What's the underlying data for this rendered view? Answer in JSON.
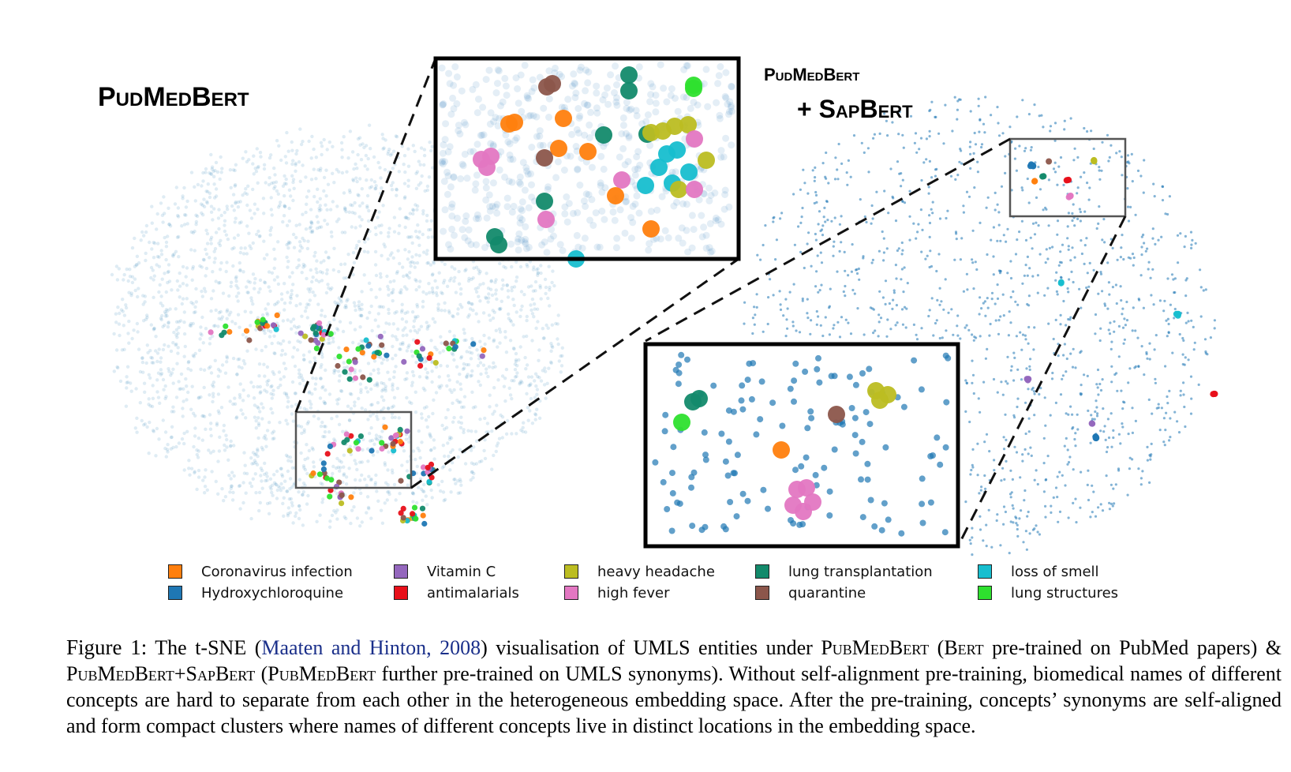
{
  "panels": {
    "left_title": "PudMedBert",
    "right_title_line1": "PudMedBert",
    "right_title_line2": "+ SapBert"
  },
  "legend": [
    {
      "label": "Coronavirus infection",
      "color": "#ff7f0e"
    },
    {
      "label": "Hydroxychloroquine",
      "color": "#1f77b4"
    },
    {
      "label": "Vitamin C",
      "color": "#9467bd"
    },
    {
      "label": "antimalarials",
      "color": "#e8101a"
    },
    {
      "label": "heavy headache",
      "color": "#bcbd22"
    },
    {
      "label": "high fever",
      "color": "#e377c2"
    },
    {
      "label": "lung transplantation",
      "color": "#138a6b"
    },
    {
      "label": "quarantine",
      "color": "#8c564b"
    },
    {
      "label": "loss of smell",
      "color": "#17becf"
    },
    {
      "label": "lung structures",
      "color": "#2ee02e"
    }
  ],
  "background_color": "#1f77b4",
  "caption": {
    "label": "Figure 1:",
    "t1": "The t-SNE (",
    "cite": "Maaten and Hinton, 2008",
    "t2": ") visualisation of UMLS entities under ",
    "m1": "PubMedBert",
    "t3": " (",
    "m2": "Bert",
    "t4": " pre-trained on PubMed papers) & ",
    "m3": "PubMedBert+SapBert",
    "t5": " (",
    "m4": "PubMedBert",
    "t6": " further pre-trained on UMLS synonyms). Without self-alignment pre-training, biomedical names of different concepts are hard to separate from each other in the heterogeneous embedding space. After the pre-training, concepts’ synonyms are self-aligned and form compact clusters where names of different concepts live in distinct locations in the embedding space."
  }
}
